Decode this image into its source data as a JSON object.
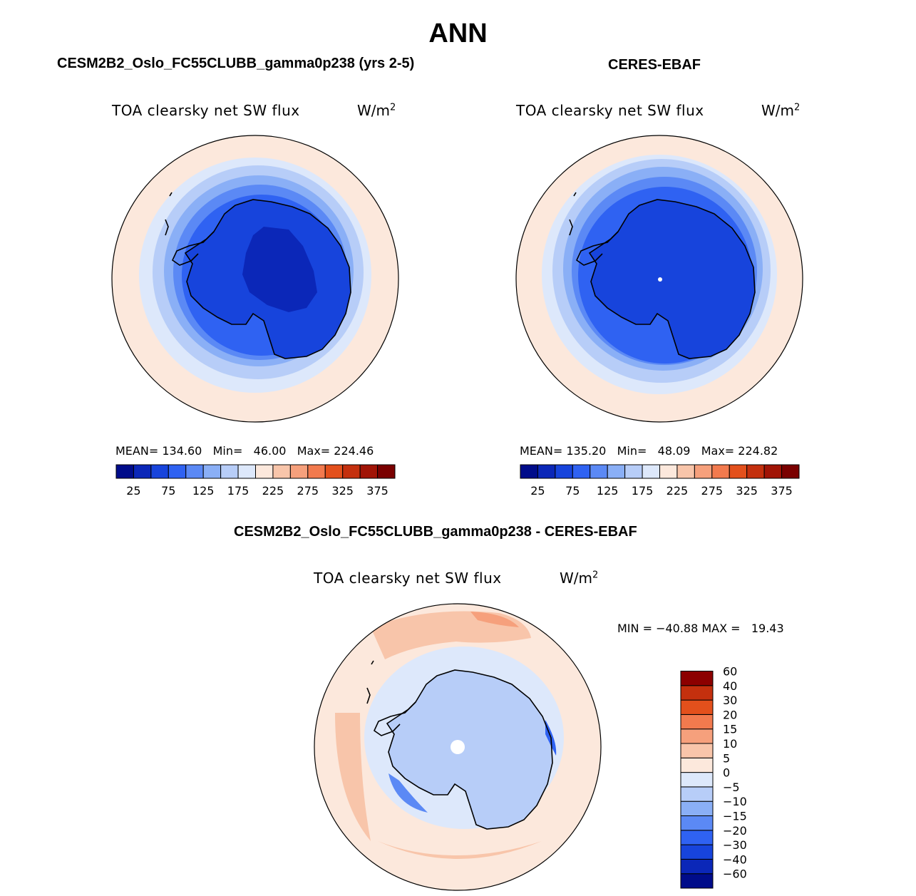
{
  "figure": {
    "title": "ANN",
    "panels": [
      {
        "case_title": "CESM2B2_Oslo_FC55CLUBB_gamma0p238 (yrs 2-5)",
        "plot_title": "TOA clearsky net SW flux",
        "units_base": "W/m",
        "units_exp": "2",
        "stats": {
          "mean_label": "MEAN=",
          "mean": "134.60",
          "min_label": "Min=",
          "min": "46.00",
          "max_label": "Max=",
          "max": "224.46"
        }
      },
      {
        "case_title": "CERES-EBAF",
        "plot_title": "TOA clearsky net SW flux",
        "units_base": "W/m",
        "units_exp": "2",
        "stats": {
          "mean_label": "MEAN=",
          "mean": "135.20",
          "min_label": "Min=",
          "min": "48.09",
          "max_label": "Max=",
          "max": "224.82"
        }
      },
      {
        "case_title": "CESM2B2_Oslo_FC55CLUBB_gamma0p238 - CERES-EBAF",
        "plot_title": "TOA clearsky net SW flux",
        "units_base": "W/m",
        "units_exp": "2",
        "stats_line": "MIN = −40.88 MAX =   19.43"
      }
    ]
  },
  "colorbars": {
    "absolute": {
      "colors": [
        "#000c8a",
        "#0b27b8",
        "#1744dc",
        "#2f62f2",
        "#5b89f5",
        "#8aaff6",
        "#b7cdf8",
        "#dde8fb",
        "#fce8dc",
        "#f8c5aa",
        "#f6a07c",
        "#f27a4e",
        "#e3501c",
        "#c4300e",
        "#a11406",
        "#7a0000"
      ],
      "labels": [
        "25",
        "75",
        "125",
        "175",
        "225",
        "275",
        "325",
        "375"
      ]
    },
    "difference": {
      "colors": [
        "#000c8a",
        "#0b27b8",
        "#1744dc",
        "#2f62f2",
        "#5b89f5",
        "#8aaff6",
        "#b7cdf8",
        "#dde8fb",
        "#fce8dc",
        "#f8c5aa",
        "#f6a07c",
        "#f27a4e",
        "#e3501c",
        "#c4300e",
        "#8c0000"
      ],
      "labels": [
        "60",
        "40",
        "30",
        "20",
        "15",
        "10",
        "5",
        "0",
        "−5",
        "−10",
        "−15",
        "−20",
        "−30",
        "−40",
        "−60"
      ]
    }
  },
  "chart_data": [
    {
      "type": "heatmap",
      "projection": "south-polar-stereographic",
      "title": "TOA clearsky net SW flux",
      "units": "W/m2",
      "field": "CESM2B2_Oslo_FC55CLUBB_gamma0p238 (yrs 2-5)",
      "mean": 134.6,
      "min": 46.0,
      "max": 224.46,
      "contour_levels": [
        25,
        50,
        75,
        100,
        125,
        150,
        175,
        200,
        225,
        250,
        275,
        300,
        325,
        350,
        375
      ]
    },
    {
      "type": "heatmap",
      "projection": "south-polar-stereographic",
      "title": "TOA clearsky net SW flux",
      "units": "W/m2",
      "field": "CERES-EBAF",
      "mean": 135.2,
      "min": 48.09,
      "max": 224.82,
      "contour_levels": [
        25,
        50,
        75,
        100,
        125,
        150,
        175,
        200,
        225,
        250,
        275,
        300,
        325,
        350,
        375
      ]
    },
    {
      "type": "heatmap",
      "projection": "south-polar-stereographic",
      "title": "TOA clearsky net SW flux",
      "units": "W/m2",
      "field": "CESM2B2_Oslo_FC55CLUBB_gamma0p238 - CERES-EBAF",
      "min": -40.88,
      "max": 19.43,
      "contour_levels": [
        -60,
        -40,
        -30,
        -20,
        -15,
        -10,
        -5,
        0,
        5,
        10,
        15,
        20,
        30,
        40,
        60
      ]
    }
  ]
}
